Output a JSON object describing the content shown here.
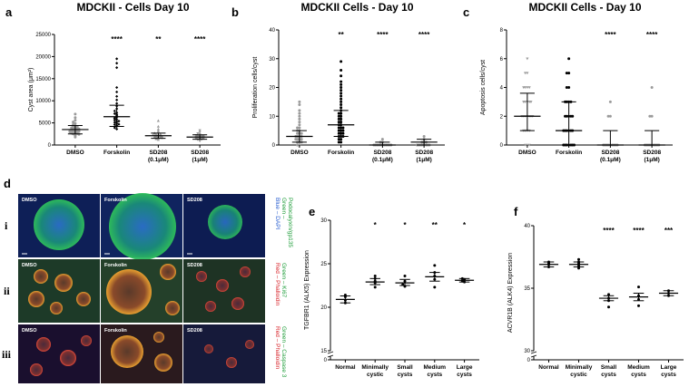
{
  "colors": {
    "dapi_blue": "#2a5fd0",
    "green": "#1f9d3a",
    "red": "#d8242a",
    "gray_points": "#9a9a9a",
    "black": "#000000"
  },
  "panel_d": {
    "letter": "d",
    "rows": [
      {
        "numeral": "i",
        "cells": [
          "DMSO",
          "Forskolin",
          "SD208"
        ],
        "stain_lines": [
          {
            "text": "Blue – DAPI",
            "color": "#2a5fd0"
          },
          {
            "text": "Green –",
            "color": "#1f9d3a"
          },
          {
            "text": "Podocalyxin/gp135",
            "color": "#1f9d3a"
          }
        ]
      },
      {
        "numeral": "ii",
        "cells": [
          "DMSO",
          "Forskolin",
          "SD208"
        ],
        "stain_lines": [
          {
            "text": "Red – Phalloidin",
            "color": "#d8242a"
          },
          {
            "text": "Green – Ki67",
            "color": "#1f9d3a"
          }
        ]
      },
      {
        "numeral": "iii",
        "cells": [
          "DMSO",
          "Forskolin",
          "SD208"
        ],
        "stain_lines": [
          {
            "text": "Red – Phalloidin",
            "color": "#d8242a"
          },
          {
            "text": "Green – Caspase 3",
            "color": "#1f9d3a"
          }
        ]
      }
    ]
  },
  "chart_data": [
    {
      "panel": "a",
      "type": "scatter",
      "title": "MDCKII - Cells Day 10",
      "ylabel": "Cyst area (μm²)",
      "xlabel": "",
      "ylim": [
        0,
        25000
      ],
      "yticks": [
        "0",
        "5000",
        "10000",
        "15000",
        "20000",
        "25000"
      ],
      "categories": [
        {
          "lines": [
            "DMSO"
          ],
          "marker": "circle",
          "color": "#9a9a9a",
          "mean": 3500,
          "sd_low": 2500,
          "sd_high": 4400,
          "significance": "",
          "points": [
            1800,
            2100,
            2300,
            2500,
            2600,
            2700,
            2800,
            2900,
            3000,
            3100,
            3200,
            3300,
            3400,
            3500,
            3600,
            3700,
            3800,
            3900,
            4000,
            4200,
            4400,
            4600,
            4900,
            5200,
            5600,
            6200,
            7000,
            2400,
            3050,
            3350,
            3650,
            4100,
            2950,
            3250
          ]
        },
        {
          "lines": [
            "Forskolin"
          ],
          "marker": "diamond",
          "color": "#000000",
          "mean": 6400,
          "sd_low": 4200,
          "sd_high": 9000,
          "significance": "****",
          "points": [
            3600,
            3900,
            4200,
            4400,
            4600,
            4900,
            5100,
            5300,
            5600,
            5800,
            6000,
            6300,
            6600,
            6900,
            7300,
            7700,
            8200,
            8800,
            9400,
            10200,
            11000,
            12000,
            13000,
            17500,
            18500,
            19500,
            4700,
            5400,
            6100,
            7100
          ]
        },
        {
          "lines": [
            "SD208",
            "(0.1μM)"
          ],
          "marker": "triangle",
          "color": "#9a9a9a",
          "mean": 2100,
          "sd_low": 1500,
          "sd_high": 2700,
          "significance": "**",
          "points": [
            1200,
            1400,
            1500,
            1600,
            1700,
            1800,
            1900,
            2000,
            2100,
            2200,
            2300,
            2400,
            2500,
            2700,
            2900,
            3200,
            3600,
            4200,
            5500,
            1650,
            1950,
            2250
          ]
        },
        {
          "lines": [
            "SD208",
            "(1μM)"
          ],
          "marker": "triangle-down",
          "color": "#9a9a9a",
          "mean": 1800,
          "sd_low": 1300,
          "sd_high": 2300,
          "significance": "****",
          "points": [
            900,
            1100,
            1200,
            1300,
            1400,
            1500,
            1600,
            1700,
            1800,
            1900,
            2000,
            2100,
            2200,
            2400,
            2600,
            2900,
            3300,
            1450,
            1750,
            2050
          ]
        }
      ]
    },
    {
      "panel": "b",
      "type": "scatter",
      "title": "MDCKII Cells - Day 10",
      "ylabel": "Proliferation cells/cyst",
      "xlabel": "",
      "ylim": [
        0,
        40
      ],
      "yticks": [
        "0",
        "10",
        "20",
        "30",
        "40"
      ],
      "categories": [
        {
          "lines": [
            "DMSO"
          ],
          "marker": "circle",
          "color": "#9a9a9a",
          "mean": 3,
          "sd_low": 1,
          "sd_high": 5,
          "significance": "",
          "points": [
            0,
            0,
            1,
            1,
            1,
            2,
            2,
            2,
            2,
            3,
            3,
            3,
            3,
            4,
            4,
            4,
            5,
            5,
            6,
            6,
            7,
            8,
            9,
            10,
            11,
            12,
            14,
            15
          ]
        },
        {
          "lines": [
            "Forskolin"
          ],
          "marker": "circle",
          "color": "#000000",
          "mean": 7,
          "sd_low": 3,
          "sd_high": 12,
          "significance": "**",
          "points": [
            1,
            1,
            2,
            2,
            3,
            3,
            3,
            4,
            4,
            4,
            5,
            5,
            5,
            6,
            6,
            6,
            7,
            7,
            8,
            8,
            9,
            9,
            10,
            10,
            11,
            11,
            12,
            13,
            14,
            15,
            16,
            17,
            18,
            19,
            20,
            21,
            22,
            24,
            26,
            29
          ]
        },
        {
          "lines": [
            "SD208",
            "(0.1μM)"
          ],
          "marker": "circle",
          "color": "#9a9a9a",
          "mean": 0,
          "sd_low": 0,
          "sd_high": 1,
          "significance": "****",
          "points": [
            0,
            0,
            0,
            0,
            0,
            0,
            0,
            0,
            0,
            0,
            0,
            1,
            1,
            2
          ]
        },
        {
          "lines": [
            "SD208",
            "(1μM)"
          ],
          "marker": "circle",
          "color": "#9a9a9a",
          "mean": 1,
          "sd_low": 0,
          "sd_high": 2,
          "significance": "****",
          "points": [
            0,
            0,
            0,
            0,
            0,
            0,
            0,
            0,
            1,
            1,
            1,
            2,
            3
          ]
        }
      ]
    },
    {
      "panel": "c",
      "type": "scatter",
      "title": "MDCKII Cells - Day 10",
      "ylabel": "Apoptosis cells/cyst",
      "xlabel": "",
      "ylim": [
        0,
        8
      ],
      "yticks": [
        "0",
        "2",
        "4",
        "6",
        "8"
      ],
      "categories": [
        {
          "lines": [
            "DMSO"
          ],
          "marker": "triangle-down",
          "color": "#9a9a9a",
          "mean": 2,
          "sd_low": 1,
          "sd_high": 3.6,
          "significance": "",
          "points": [
            0,
            0,
            0,
            1,
            1,
            1,
            1,
            2,
            2,
            2,
            2,
            2,
            2,
            2,
            3,
            3,
            3,
            3,
            3,
            4,
            4,
            4,
            4,
            5,
            5,
            6
          ]
        },
        {
          "lines": [
            "Forskolin"
          ],
          "marker": "circle",
          "color": "#000000",
          "mean": 1,
          "sd_low": 0,
          "sd_high": 3,
          "significance": "",
          "points": [
            0,
            0,
            0,
            0,
            0,
            0,
            0,
            1,
            1,
            1,
            1,
            1,
            1,
            2,
            2,
            2,
            2,
            2,
            3,
            3,
            3,
            3,
            4,
            4,
            5,
            5,
            6
          ]
        },
        {
          "lines": [
            "SD208",
            "(0.1μM)"
          ],
          "marker": "circle",
          "color": "#9a9a9a",
          "mean": 0,
          "sd_low": 0,
          "sd_high": 1,
          "significance": "****",
          "points": [
            0,
            0,
            0,
            0,
            0,
            0,
            0,
            0,
            0,
            2,
            2,
            3
          ]
        },
        {
          "lines": [
            "SD208",
            "(1μM)"
          ],
          "marker": "circle",
          "color": "#9a9a9a",
          "mean": 0,
          "sd_low": 0,
          "sd_high": 1,
          "significance": "****",
          "points": [
            0,
            0,
            0,
            0,
            0,
            0,
            0,
            0,
            0,
            2,
            2,
            4
          ]
        }
      ]
    },
    {
      "panel": "e",
      "type": "scatter",
      "title": "",
      "ylabel": "TGFBR1 (ALK5) Expression",
      "xlabel": "",
      "ylim": [
        15,
        30
      ],
      "axis_break": [
        0,
        15
      ],
      "yticks": [
        "0",
        "15",
        "20",
        "25",
        "30"
      ],
      "categories": [
        {
          "lines": [
            "Normal"
          ],
          "marker": "circle",
          "color": "#000000",
          "mean": 20.9,
          "sd_low": 20.5,
          "sd_high": 21.3,
          "significance": "",
          "points": [
            20.5,
            20.8,
            21.2,
            21.4
          ]
        },
        {
          "lines": [
            "Minimally",
            "cystic"
          ],
          "marker": "circle",
          "color": "#000000",
          "mean": 22.9,
          "sd_low": 22.6,
          "sd_high": 23.3,
          "significance": "*",
          "points": [
            22.3,
            22.8,
            23.0,
            23.3,
            23.6
          ]
        },
        {
          "lines": [
            "Small",
            "cysts"
          ],
          "marker": "circle",
          "color": "#000000",
          "mean": 22.8,
          "sd_low": 22.5,
          "sd_high": 23.2,
          "significance": "*",
          "points": [
            22.4,
            22.6,
            23.0,
            23.6
          ]
        },
        {
          "lines": [
            "Medium",
            "cysts"
          ],
          "marker": "circle",
          "color": "#000000",
          "mean": 23.5,
          "sd_low": 23.0,
          "sd_high": 24.0,
          "significance": "**",
          "points": [
            22.3,
            23.2,
            23.6,
            24.0,
            24.8
          ]
        },
        {
          "lines": [
            "Large",
            "cysts"
          ],
          "marker": "circle",
          "color": "#000000",
          "mean": 23.1,
          "sd_low": 22.9,
          "sd_high": 23.3,
          "significance": "*",
          "points": [
            22.9,
            23.0,
            23.2,
            23.3
          ]
        }
      ]
    },
    {
      "panel": "f",
      "type": "scatter",
      "title": "",
      "ylabel": "ACVR1B (ALK4) Expression",
      "xlabel": "",
      "ylim": [
        30,
        40
      ],
      "axis_break": [
        0,
        30
      ],
      "yticks": [
        "0",
        "30",
        "35",
        "40"
      ],
      "categories": [
        {
          "lines": [
            "Normal"
          ],
          "marker": "circle",
          "color": "#000000",
          "mean": 36.9,
          "sd_low": 36.7,
          "sd_high": 37.1,
          "significance": "",
          "points": [
            36.7,
            36.9,
            37.0,
            37.1
          ]
        },
        {
          "lines": [
            "Minimally",
            "cystic"
          ],
          "marker": "circle",
          "color": "#000000",
          "mean": 36.9,
          "sd_low": 36.7,
          "sd_high": 37.1,
          "significance": "",
          "points": [
            36.6,
            36.8,
            37.0,
            37.1,
            37.3
          ]
        },
        {
          "lines": [
            "Small",
            "cysts"
          ],
          "marker": "circle",
          "color": "#000000",
          "mean": 34.2,
          "sd_low": 34.0,
          "sd_high": 34.4,
          "significance": "****",
          "points": [
            33.5,
            34.0,
            34.2,
            34.5
          ]
        },
        {
          "lines": [
            "Medium",
            "cysts"
          ],
          "marker": "circle",
          "color": "#000000",
          "mean": 34.3,
          "sd_low": 34.0,
          "sd_high": 34.6,
          "significance": "****",
          "points": [
            33.6,
            34.1,
            34.4,
            35.1
          ]
        },
        {
          "lines": [
            "Large",
            "cysts"
          ],
          "marker": "circle",
          "color": "#000000",
          "mean": 34.6,
          "sd_low": 34.4,
          "sd_high": 34.8,
          "significance": "***",
          "points": [
            34.4,
            34.6,
            34.8
          ]
        }
      ]
    }
  ]
}
